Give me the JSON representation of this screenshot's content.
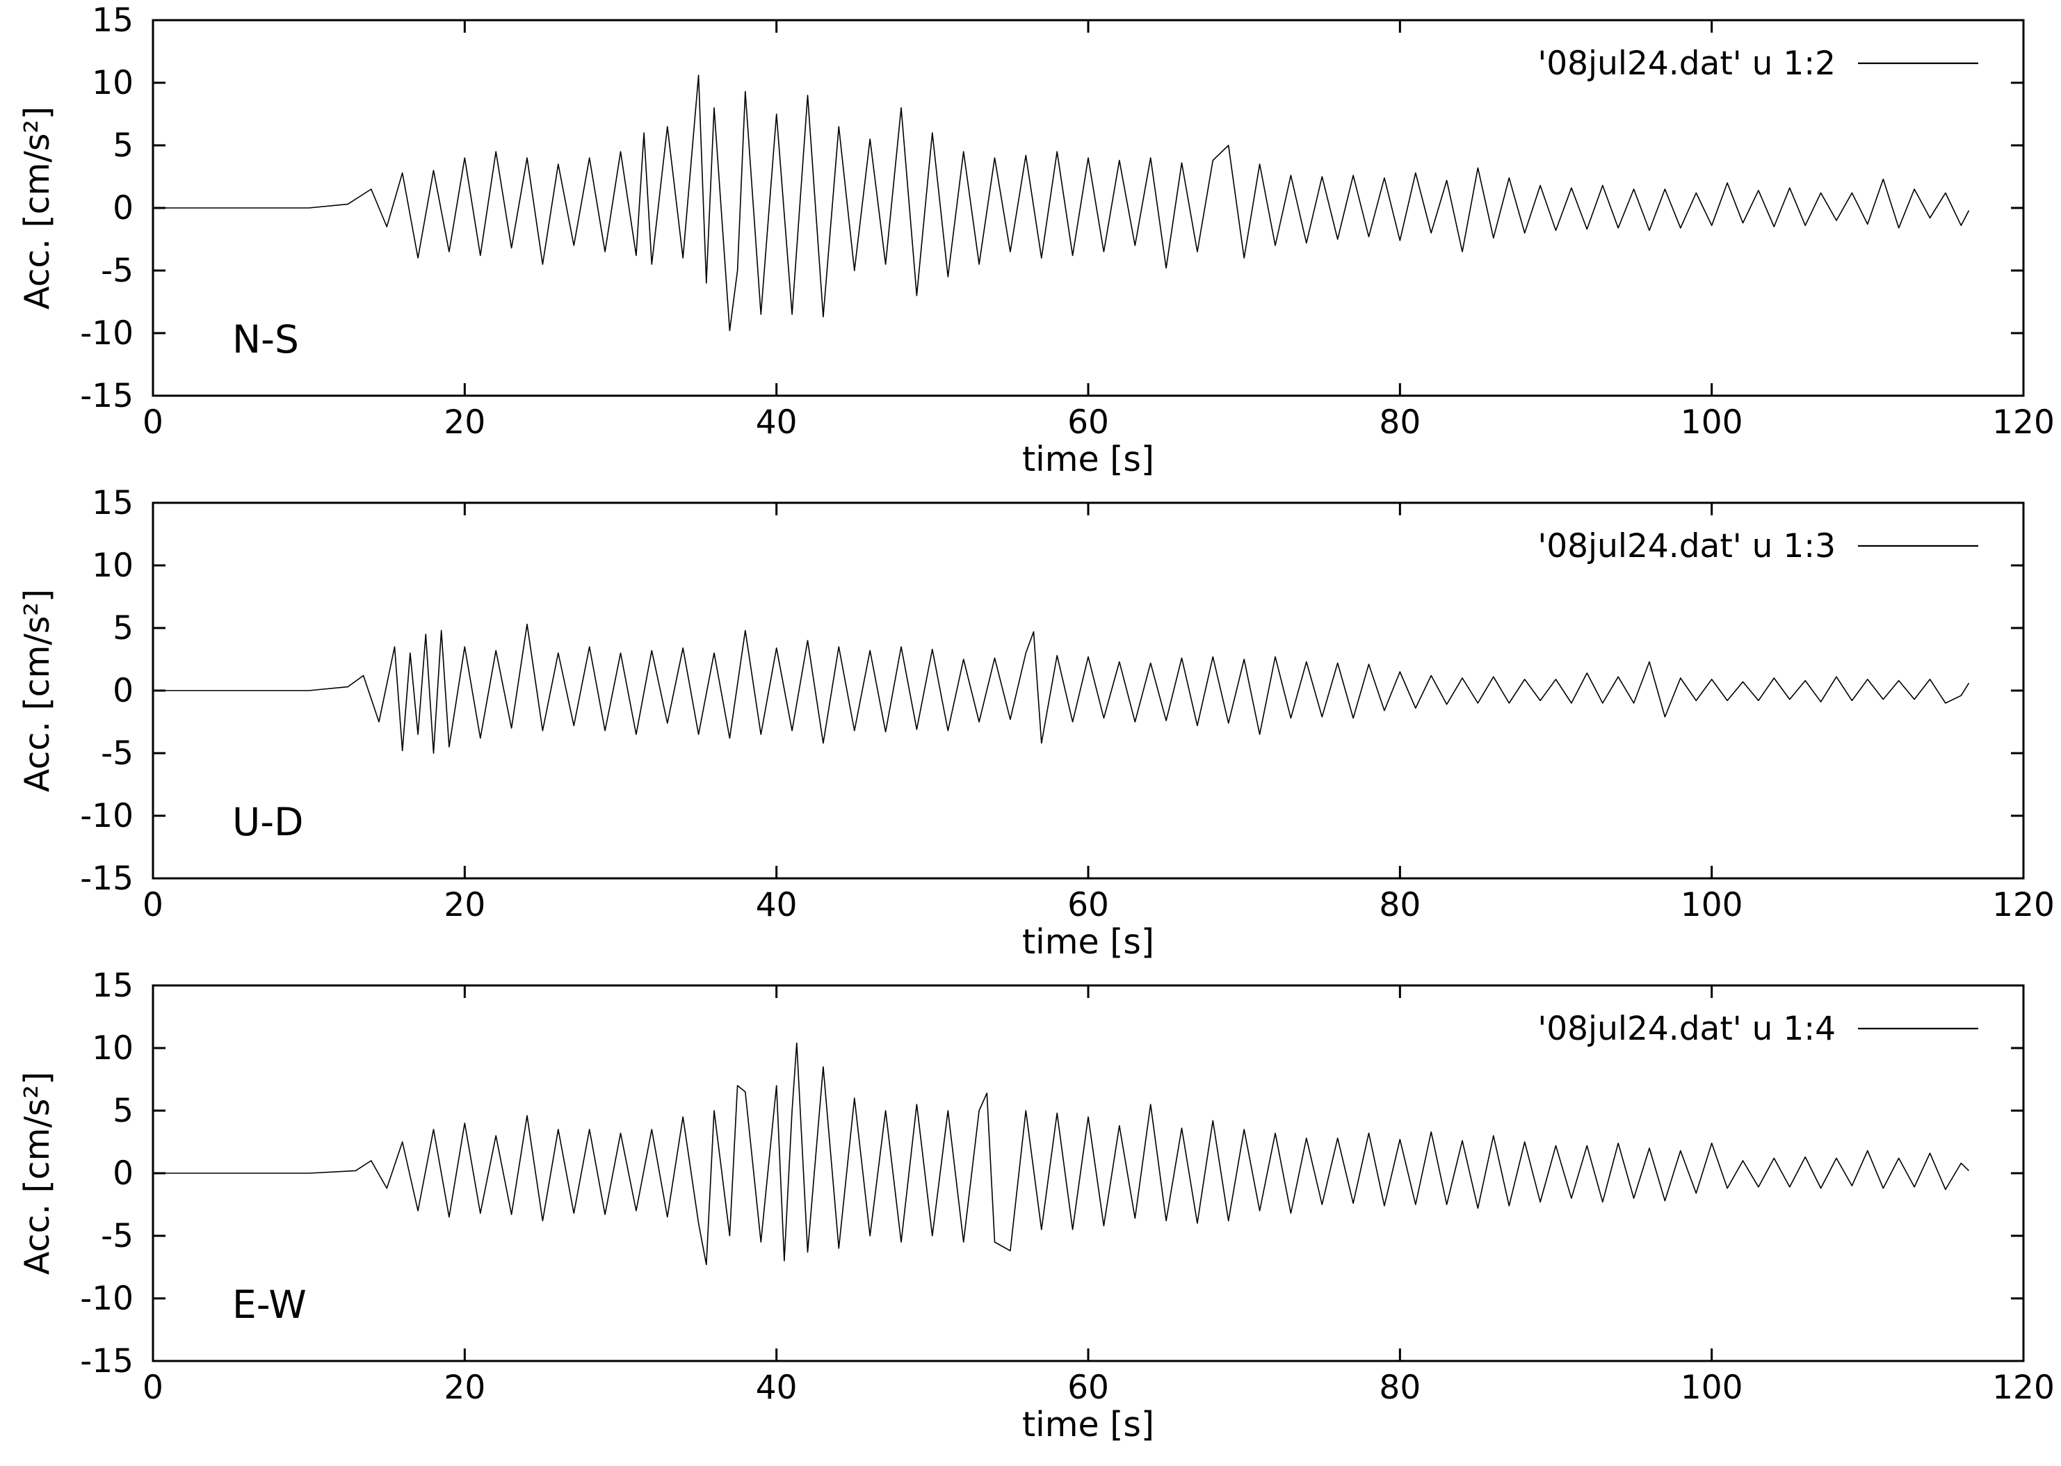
{
  "chart_data": [
    {
      "type": "line",
      "panel_label": "N-S",
      "xlabel": "time [s]",
      "ylabel": "Acc. [cm/s²]",
      "xlim": [
        0,
        120
      ],
      "ylim": [
        -15,
        15
      ],
      "xticks": [
        0,
        20,
        40,
        60,
        80,
        100,
        120
      ],
      "yticks": [
        -15,
        -10,
        -5,
        0,
        5,
        10,
        15
      ],
      "grid": false,
      "legend_position": "top-right",
      "series": [
        {
          "name": "'08jul24.dat' u 1:2",
          "x": [
            0,
            5,
            10,
            12.5,
            14,
            15,
            16,
            17,
            18,
            19,
            20,
            21,
            22,
            23,
            24,
            25,
            26,
            27,
            28,
            29,
            30,
            31,
            31.5,
            32,
            33,
            34,
            35,
            35.5,
            36,
            37,
            37.5,
            38,
            39,
            40,
            41,
            42,
            43,
            44,
            45,
            46,
            47,
            48,
            49,
            50,
            51,
            52,
            53,
            54,
            55,
            56,
            57,
            58,
            59,
            60,
            61,
            62,
            63,
            64,
            65,
            66,
            67,
            68,
            69,
            70,
            71,
            72,
            73,
            74,
            75,
            76,
            77,
            78,
            79,
            80,
            81,
            82,
            83,
            84,
            85,
            86,
            87,
            88,
            89,
            90,
            91,
            92,
            93,
            94,
            95,
            96,
            97,
            98,
            99,
            100,
            101,
            102,
            103,
            104,
            105,
            106,
            107,
            108,
            109,
            110,
            111,
            112,
            113,
            114,
            115,
            116,
            116.5
          ],
          "y": [
            0,
            0,
            0,
            0.3,
            1.5,
            -1.5,
            2.8,
            -4,
            3,
            -3.5,
            4,
            -3.8,
            4.5,
            -3.2,
            4,
            -4.5,
            3.5,
            -3,
            4,
            -3.5,
            4.5,
            -3.8,
            6,
            -4.5,
            6.5,
            -4,
            10.6,
            -6,
            8,
            -9.8,
            -5,
            9.3,
            -8.5,
            7.5,
            -8.5,
            9,
            -8.7,
            6.5,
            -5,
            5.5,
            -4.5,
            8,
            -7,
            6,
            -5.5,
            4.5,
            -4.5,
            4,
            -3.5,
            4.2,
            -4,
            4.5,
            -3.8,
            4,
            -3.5,
            3.8,
            -3,
            4,
            -4.8,
            3.6,
            -3.5,
            3.8,
            5,
            -4,
            3.5,
            -3,
            2.6,
            -2.8,
            2.5,
            -2.5,
            2.6,
            -2.3,
            2.4,
            -2.6,
            2.8,
            -2,
            2.2,
            -3.5,
            3.2,
            -2.4,
            2.4,
            -2.0,
            1.8,
            -1.8,
            1.6,
            -1.7,
            1.8,
            -1.6,
            1.5,
            -1.8,
            1.5,
            -1.6,
            1.2,
            -1.4,
            2.0,
            -1.2,
            1.4,
            -1.5,
            1.6,
            -1.4,
            1.2,
            -1.0,
            1.2,
            -1.3,
            2.3,
            -1.6,
            1.5,
            -0.8,
            1.2,
            -1.4,
            -0.2
          ]
        }
      ]
    },
    {
      "type": "line",
      "panel_label": "U-D",
      "xlabel": "time [s]",
      "ylabel": "Acc. [cm/s²]",
      "xlim": [
        0,
        120
      ],
      "ylim": [
        -15,
        15
      ],
      "xticks": [
        0,
        20,
        40,
        60,
        80,
        100,
        120
      ],
      "yticks": [
        -15,
        -10,
        -5,
        0,
        5,
        10,
        15
      ],
      "grid": false,
      "legend_position": "top-right",
      "series": [
        {
          "name": "'08jul24.dat' u 1:3",
          "x": [
            0,
            5,
            10,
            12.5,
            13.5,
            14.5,
            15.5,
            16,
            16.5,
            17,
            17.5,
            18,
            18.5,
            19,
            20,
            21,
            22,
            23,
            24,
            25,
            26,
            27,
            28,
            29,
            30,
            31,
            32,
            33,
            34,
            35,
            36,
            37,
            38,
            39,
            40,
            41,
            42,
            43,
            44,
            45,
            46,
            47,
            48,
            49,
            50,
            51,
            52,
            53,
            54,
            55,
            56,
            56.5,
            57,
            58,
            59,
            60,
            61,
            62,
            63,
            64,
            65,
            66,
            67,
            68,
            69,
            70,
            71,
            72,
            73,
            74,
            75,
            76,
            77,
            78,
            79,
            80,
            81,
            82,
            83,
            84,
            85,
            86,
            87,
            88,
            89,
            90,
            91,
            92,
            93,
            94,
            95,
            96,
            97,
            98,
            99,
            100,
            101,
            102,
            103,
            104,
            105,
            106,
            107,
            108,
            109,
            110,
            111,
            112,
            113,
            114,
            115,
            116,
            116.5
          ],
          "y": [
            0,
            0,
            0,
            0.3,
            1.2,
            -2.5,
            3.5,
            -4.8,
            3,
            -3.5,
            4.5,
            -5,
            4.8,
            -4.5,
            3.5,
            -3.8,
            3.2,
            -3,
            5.3,
            -3.2,
            3,
            -2.8,
            3.5,
            -3.2,
            3,
            -3.5,
            3.2,
            -2.6,
            3.4,
            -3.5,
            3,
            -3.8,
            4.8,
            -3.5,
            3.4,
            -3.2,
            4,
            -4.2,
            3.5,
            -3.2,
            3.2,
            -3.3,
            3.5,
            -3.1,
            3.3,
            -3.2,
            2.5,
            -2.5,
            2.6,
            -2.3,
            3,
            4.7,
            -4.2,
            2.8,
            -2.5,
            2.7,
            -2.2,
            2.3,
            -2.5,
            2.2,
            -2.4,
            2.6,
            -2.8,
            2.7,
            -2.6,
            2.5,
            -3.5,
            2.7,
            -2.2,
            2.3,
            -2.1,
            2.2,
            -2.2,
            2.1,
            -1.6,
            1.5,
            -1.4,
            1.2,
            -1.1,
            1.0,
            -1.0,
            1.1,
            -1.0,
            0.9,
            -0.8,
            0.9,
            -1.0,
            1.4,
            -1.0,
            1.1,
            -1.0,
            2.3,
            -2.1,
            1.0,
            -0.8,
            0.9,
            -0.8,
            0.7,
            -0.8,
            1.0,
            -0.7,
            0.8,
            -0.9,
            1.1,
            -0.8,
            0.9,
            -0.7,
            0.8,
            -0.7,
            0.9,
            -1.0,
            -0.4,
            0.6
          ]
        }
      ]
    },
    {
      "type": "line",
      "panel_label": "E-W",
      "xlabel": "time [s]",
      "ylabel": "Acc. [cm/s²]",
      "xlim": [
        0,
        120
      ],
      "ylim": [
        -15,
        15
      ],
      "xticks": [
        0,
        20,
        40,
        60,
        80,
        100,
        120
      ],
      "yticks": [
        -15,
        -10,
        -5,
        0,
        5,
        10,
        15
      ],
      "grid": false,
      "legend_position": "top-right",
      "series": [
        {
          "name": "'08jul24.dat' u 1:4",
          "x": [
            0,
            5,
            10,
            13,
            14,
            15,
            16,
            17,
            18,
            19,
            20,
            21,
            22,
            23,
            24,
            25,
            26,
            27,
            28,
            29,
            30,
            31,
            32,
            33,
            34,
            35,
            35.5,
            36,
            37,
            37.5,
            38,
            39,
            40,
            40.5,
            41,
            41.3,
            42,
            43,
            44,
            45,
            46,
            47,
            48,
            49,
            50,
            51,
            52,
            53,
            53.5,
            54,
            55,
            56,
            57,
            58,
            59,
            60,
            61,
            62,
            63,
            64,
            65,
            66,
            67,
            68,
            69,
            70,
            71,
            72,
            73,
            74,
            75,
            76,
            77,
            78,
            79,
            80,
            81,
            82,
            83,
            84,
            85,
            86,
            87,
            88,
            89,
            90,
            91,
            92,
            93,
            94,
            95,
            96,
            97,
            98,
            99,
            100,
            101,
            102,
            103,
            104,
            105,
            106,
            107,
            108,
            109,
            110,
            111,
            112,
            113,
            114,
            115,
            116,
            116.5
          ],
          "y": [
            0,
            0,
            0,
            0.2,
            1.0,
            -1.2,
            2.5,
            -3,
            3.5,
            -3.5,
            4,
            -3.2,
            3,
            -3.3,
            4.6,
            -3.8,
            3.5,
            -3.2,
            3.5,
            -3.3,
            3.2,
            -3,
            3.5,
            -3.5,
            4.5,
            -4,
            -7.3,
            5,
            -5,
            7,
            6.5,
            -5.5,
            7,
            -7,
            5,
            10.4,
            -6.3,
            8.5,
            -6,
            6,
            -5,
            5,
            -5.5,
            5.5,
            -5,
            5,
            -5.5,
            5,
            6.4,
            -5.5,
            -6.2,
            5,
            -4.5,
            4.8,
            -4.5,
            4.5,
            -4.2,
            3.8,
            -3.6,
            5.5,
            -3.8,
            3.6,
            -4,
            4.2,
            -3.8,
            3.5,
            -3,
            3.2,
            -3.2,
            2.8,
            -2.5,
            2.8,
            -2.4,
            3.2,
            -2.6,
            2.7,
            -2.5,
            3.3,
            -2.5,
            2.6,
            -2.8,
            3.0,
            -2.6,
            2.5,
            -2.3,
            2.2,
            -2.0,
            2.2,
            -2.3,
            2.4,
            -2.0,
            2.0,
            -2.2,
            1.8,
            -1.6,
            2.4,
            -1.2,
            1.0,
            -1.1,
            1.2,
            -1.1,
            1.3,
            -1.2,
            1.2,
            -1.0,
            1.8,
            -1.2,
            1.2,
            -1.1,
            1.6,
            -1.3,
            0.8,
            0.2
          ]
        }
      ]
    }
  ]
}
